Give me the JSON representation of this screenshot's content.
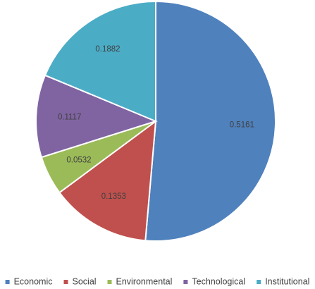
{
  "chart_data": {
    "type": "pie",
    "categories": [
      "Economic",
      "Social",
      "Environmental",
      "Technological",
      "Institutional"
    ],
    "values": [
      0.5161,
      0.1353,
      0.0532,
      0.1117,
      0.1882
    ],
    "data_labels": [
      "0.5161",
      "0.1353",
      "0.0532",
      "0.1117",
      "0.1882"
    ],
    "colors": [
      "#4f81bd",
      "#c0504d",
      "#9bbb59",
      "#8064a2",
      "#4bacc6"
    ],
    "start_angle_deg": 0,
    "direction": "clockwise",
    "legend": {
      "position": "bottom",
      "entries": [
        "Economic",
        "Social",
        "Environmental",
        "Technological",
        "Institutional"
      ]
    },
    "title": "",
    "xlabel": "",
    "ylabel": ""
  }
}
